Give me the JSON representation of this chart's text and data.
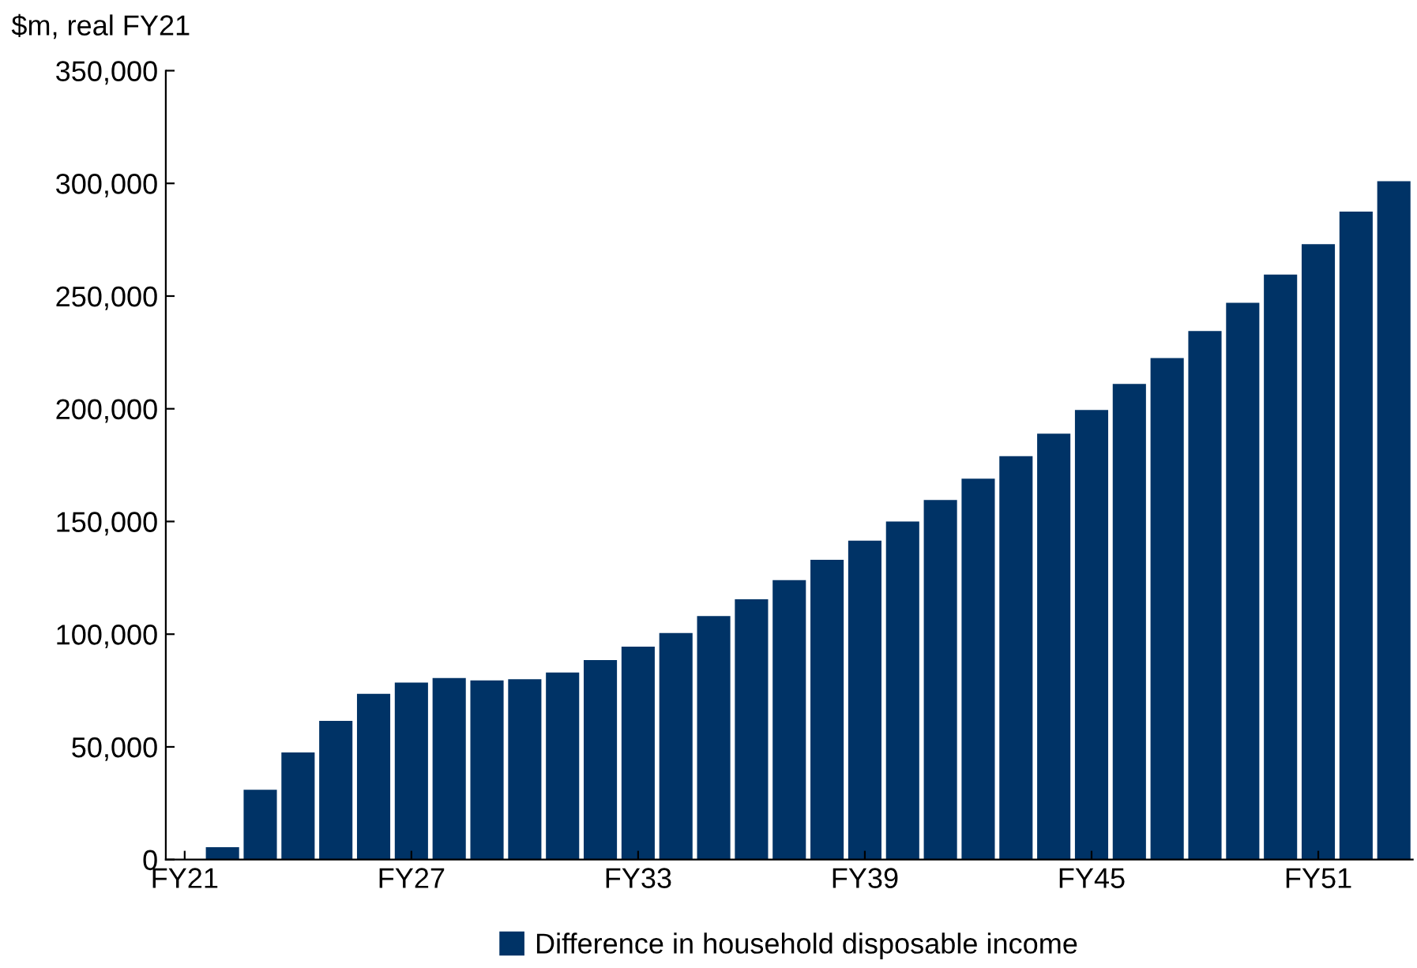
{
  "chart_data": {
    "type": "bar",
    "ylabel": "$m, real FY21",
    "categories": [
      "FY21",
      null,
      null,
      null,
      null,
      null,
      "FY27",
      null,
      null,
      null,
      null,
      null,
      "FY33",
      null,
      null,
      null,
      null,
      null,
      "FY39",
      null,
      null,
      null,
      null,
      null,
      "FY45",
      null,
      null,
      null,
      null,
      null,
      "FY51",
      null,
      null
    ],
    "series": [
      {
        "name": "Difference in household disposable income",
        "color": "#003366",
        "values": [
          0,
          5500,
          31000,
          47500,
          61500,
          73500,
          78500,
          80500,
          79500,
          80000,
          83000,
          88500,
          94500,
          100500,
          108000,
          115500,
          124000,
          133000,
          141500,
          150000,
          159500,
          169000,
          179000,
          189000,
          199500,
          211000,
          222500,
          234500,
          247000,
          259500,
          273000,
          287500,
          301000
        ]
      }
    ],
    "ylim": [
      0,
      350000
    ],
    "yticks": [
      {
        "value": 0,
        "label": "0"
      },
      {
        "value": 50000,
        "label": "50,000"
      },
      {
        "value": 100000,
        "label": "100,000"
      },
      {
        "value": 150000,
        "label": "150,000"
      },
      {
        "value": 200000,
        "label": "200,000"
      },
      {
        "value": 250000,
        "label": "250,000"
      },
      {
        "value": 300000,
        "label": "300,000"
      },
      {
        "value": 350000,
        "label": "350,000"
      }
    ],
    "grid": false,
    "legend": "bottom"
  }
}
